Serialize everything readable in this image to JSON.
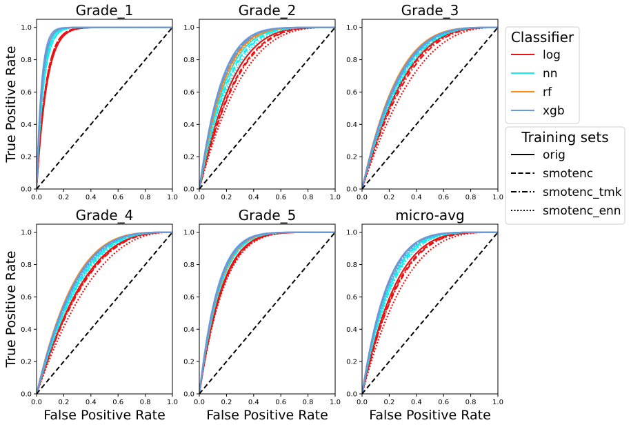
{
  "colors": {
    "log": "#ee1111",
    "nn": "#11eeee",
    "rf": "#ff8811",
    "xgb": "#6699dd"
  },
  "legend": {
    "classifier_title": "Classifier",
    "classifiers": [
      "log",
      "nn",
      "rf",
      "xgb"
    ],
    "training_title": "Training sets",
    "training_sets": [
      "orig",
      "smotenc",
      "smotenc_tmk",
      "smotenc_enn"
    ]
  },
  "chart_data": [
    {
      "type": "line",
      "title": "Grade_1",
      "xlabel": "",
      "ylabel": "True Positive Rate",
      "xlim": [
        0,
        1
      ],
      "ylim": [
        0,
        1.05
      ],
      "xticks": [
        "0.0",
        "0.2",
        "0.4",
        "0.6",
        "0.8",
        "1.0"
      ],
      "yticks": [
        "0.0",
        "0.2",
        "0.4",
        "0.6",
        "0.8",
        "1.0"
      ],
      "auc": {
        "log": [
          0.93,
          0.935,
          0.935,
          0.93
        ],
        "nn": [
          0.955,
          0.95,
          0.95,
          0.95
        ],
        "rf": [
          0.96,
          0.96,
          0.96,
          0.96
        ],
        "xgb": [
          0.965,
          0.96,
          0.96,
          0.96
        ]
      },
      "legend_sets": [
        "orig",
        "smotenc",
        "smotenc_tmk",
        "smotenc_enn"
      ]
    },
    {
      "type": "line",
      "title": "Grade_2",
      "xlabel": "",
      "ylabel": "",
      "xlim": [
        0,
        1
      ],
      "ylim": [
        0,
        1.05
      ],
      "xticks": [
        "0.0",
        "0.2",
        "0.4",
        "0.6",
        "0.8",
        "1.0"
      ],
      "yticks": [
        "0.0",
        "0.2",
        "0.4",
        "0.6",
        "0.8",
        "1.0"
      ],
      "auc": {
        "log": [
          0.8,
          0.785,
          0.78,
          0.76
        ],
        "nn": [
          0.835,
          0.825,
          0.82,
          0.81
        ],
        "rf": [
          0.85,
          0.845,
          0.845,
          0.84
        ],
        "xgb": [
          0.86,
          0.855,
          0.855,
          0.85
        ]
      }
    },
    {
      "type": "line",
      "title": "Grade_3",
      "xlabel": "",
      "ylabel": "",
      "xlim": [
        0,
        1
      ],
      "ylim": [
        0,
        1.05
      ],
      "xticks": [
        "0.0",
        "0.2",
        "0.4",
        "0.6",
        "0.8",
        "1.0"
      ],
      "yticks": [
        "0.0",
        "0.2",
        "0.4",
        "0.6",
        "0.8",
        "1.0"
      ],
      "auc": {
        "log": [
          0.76,
          0.755,
          0.745,
          0.72
        ],
        "nn": [
          0.78,
          0.775,
          0.77,
          0.765
        ],
        "rf": [
          0.795,
          0.79,
          0.79,
          0.785
        ],
        "xgb": [
          0.79,
          0.785,
          0.785,
          0.78
        ]
      }
    },
    {
      "type": "line",
      "title": "Grade_4",
      "xlabel": "False Positive Rate",
      "ylabel": "True Positive Rate",
      "xlim": [
        0,
        1
      ],
      "ylim": [
        0,
        1.05
      ],
      "xticks": [
        "0.0",
        "0.2",
        "0.4",
        "0.6",
        "0.8",
        "1.0"
      ],
      "yticks": [
        "0.0",
        "0.2",
        "0.4",
        "0.6",
        "0.8",
        "1.0"
      ],
      "auc": {
        "log": [
          0.74,
          0.735,
          0.73,
          0.705
        ],
        "nn": [
          0.765,
          0.76,
          0.755,
          0.75
        ],
        "rf": [
          0.785,
          0.78,
          0.78,
          0.775
        ],
        "xgb": [
          0.78,
          0.775,
          0.775,
          0.77
        ]
      }
    },
    {
      "type": "line",
      "title": "Grade_5",
      "xlabel": "False Positive Rate",
      "ylabel": "",
      "xlim": [
        0,
        1
      ],
      "ylim": [
        0,
        1.05
      ],
      "xticks": [
        "0.0",
        "0.2",
        "0.4",
        "0.6",
        "0.8",
        "1.0"
      ],
      "yticks": [
        "0.0",
        "0.2",
        "0.4",
        "0.6",
        "0.8",
        "1.0"
      ],
      "auc": {
        "log": [
          0.855,
          0.85,
          0.85,
          0.845
        ],
        "nn": [
          0.87,
          0.865,
          0.865,
          0.865
        ],
        "rf": [
          0.875,
          0.875,
          0.875,
          0.87
        ],
        "xgb": [
          0.88,
          0.875,
          0.875,
          0.875
        ]
      }
    },
    {
      "type": "line",
      "title": "micro-avg",
      "xlabel": "False Positive Rate",
      "ylabel": "",
      "xlim": [
        0,
        1
      ],
      "ylim": [
        0,
        1.05
      ],
      "xticks": [
        "0.0",
        "0.2",
        "0.4",
        "0.6",
        "0.8",
        "1.0"
      ],
      "yticks": [
        "0.0",
        "0.2",
        "0.4",
        "0.6",
        "0.8",
        "1.0"
      ],
      "auc": {
        "log": [
          0.8,
          0.79,
          0.785,
          0.76
        ],
        "nn": [
          0.83,
          0.825,
          0.82,
          0.815
        ],
        "rf": [
          0.845,
          0.84,
          0.84,
          0.835
        ],
        "xgb": [
          0.845,
          0.84,
          0.84,
          0.835
        ]
      }
    }
  ]
}
